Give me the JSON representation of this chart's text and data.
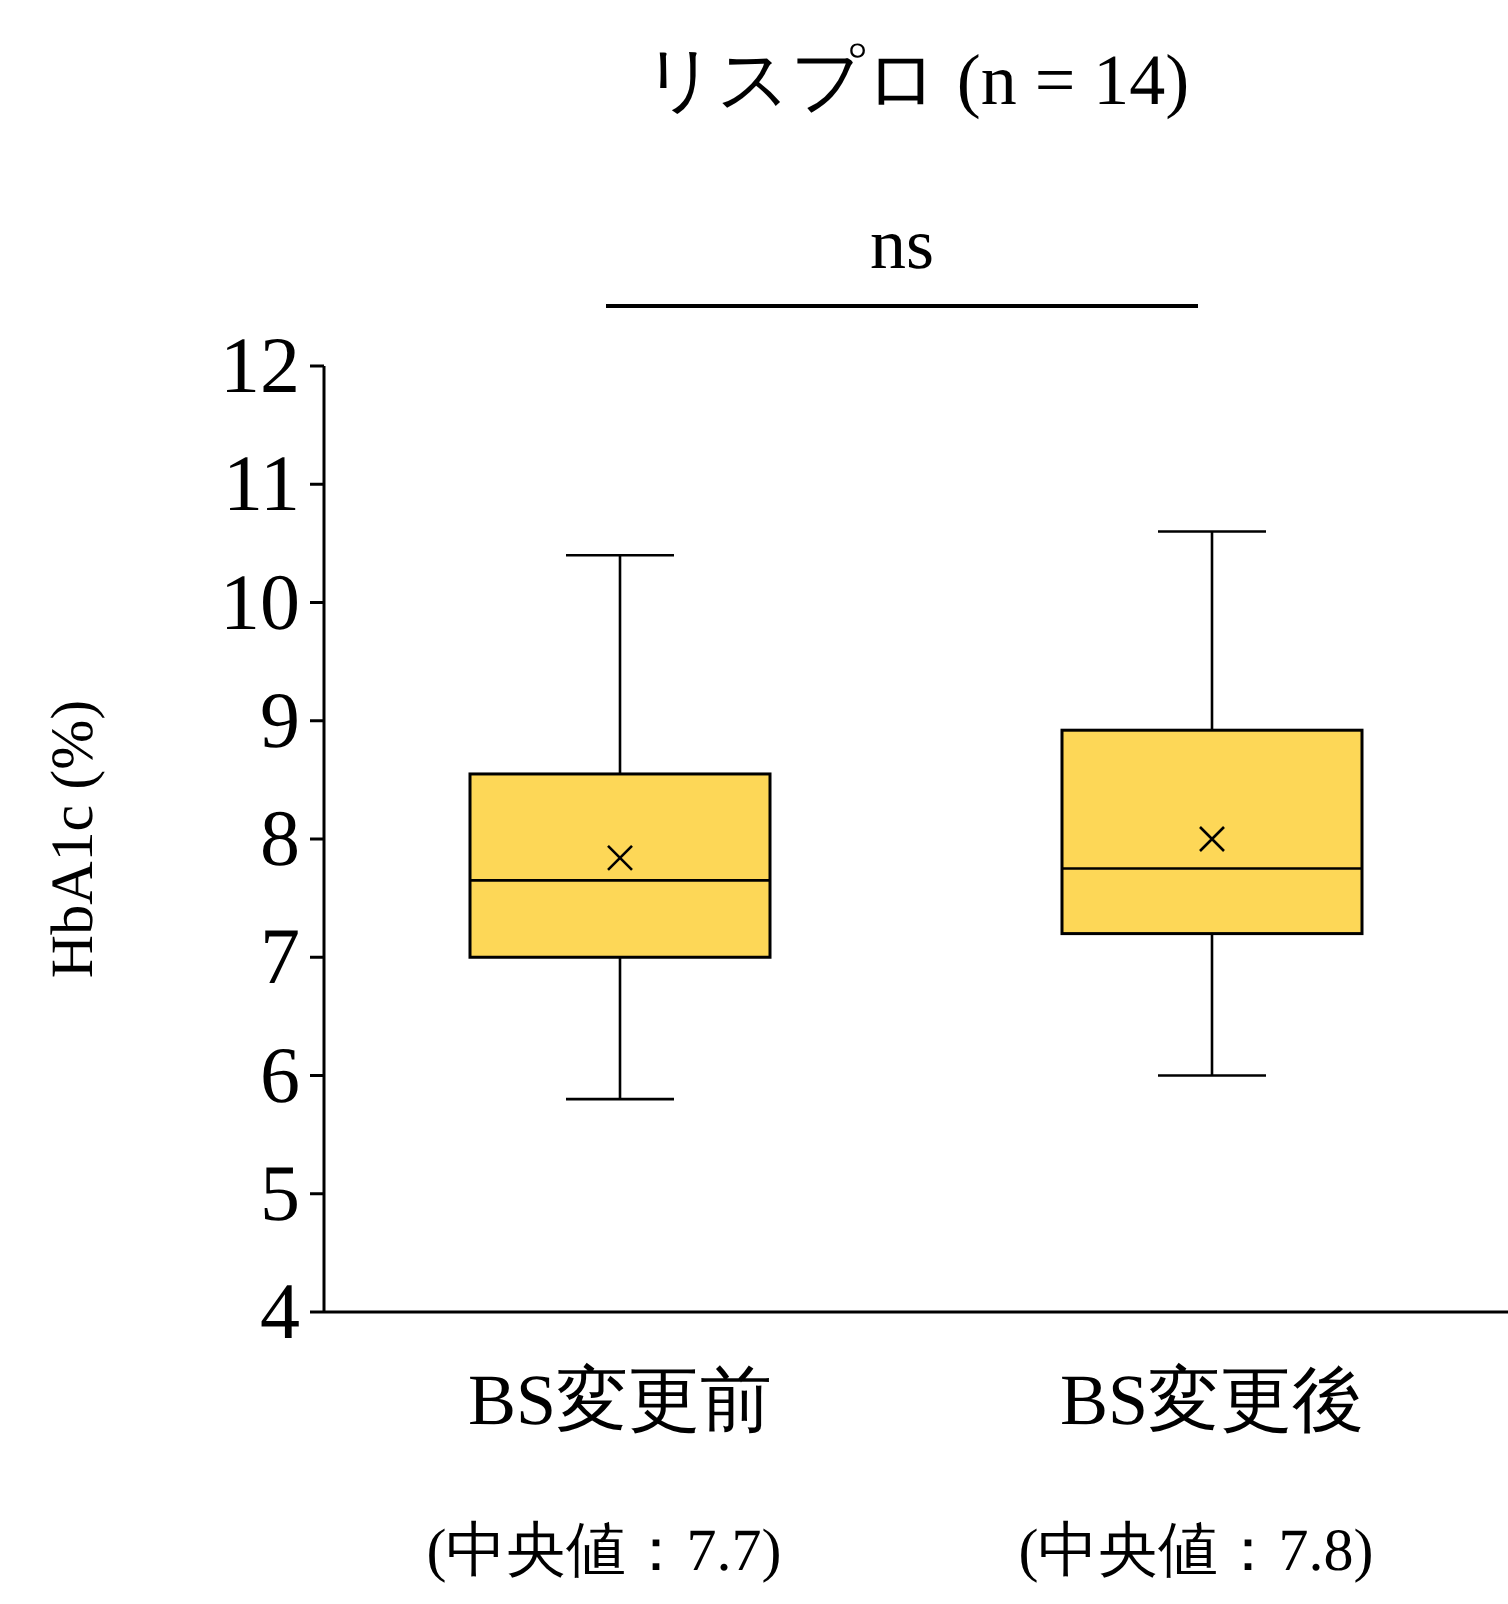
{
  "chart_data": {
    "type": "box",
    "title": "リスプロ (n = 14)",
    "ylabel": "HbA1c (%)",
    "categories": [
      "BS変更前",
      "BS変更後"
    ],
    "boxes": [
      {
        "low": 5.8,
        "q1": 7.0,
        "median": 7.65,
        "q3": 8.55,
        "high": 10.4,
        "mean": 7.84
      },
      {
        "low": 6.0,
        "q1": 7.2,
        "median": 7.75,
        "q3": 8.92,
        "high": 10.6,
        "mean": 8.0
      }
    ],
    "color": "#fdd757",
    "ylim": [
      4,
      12
    ],
    "yticks": [
      4,
      5,
      6,
      7,
      8,
      9,
      10,
      11,
      12
    ],
    "grid": false,
    "annotations": [
      "ns",
      "(中央値：7.7)",
      "(中央値：7.8)"
    ]
  }
}
